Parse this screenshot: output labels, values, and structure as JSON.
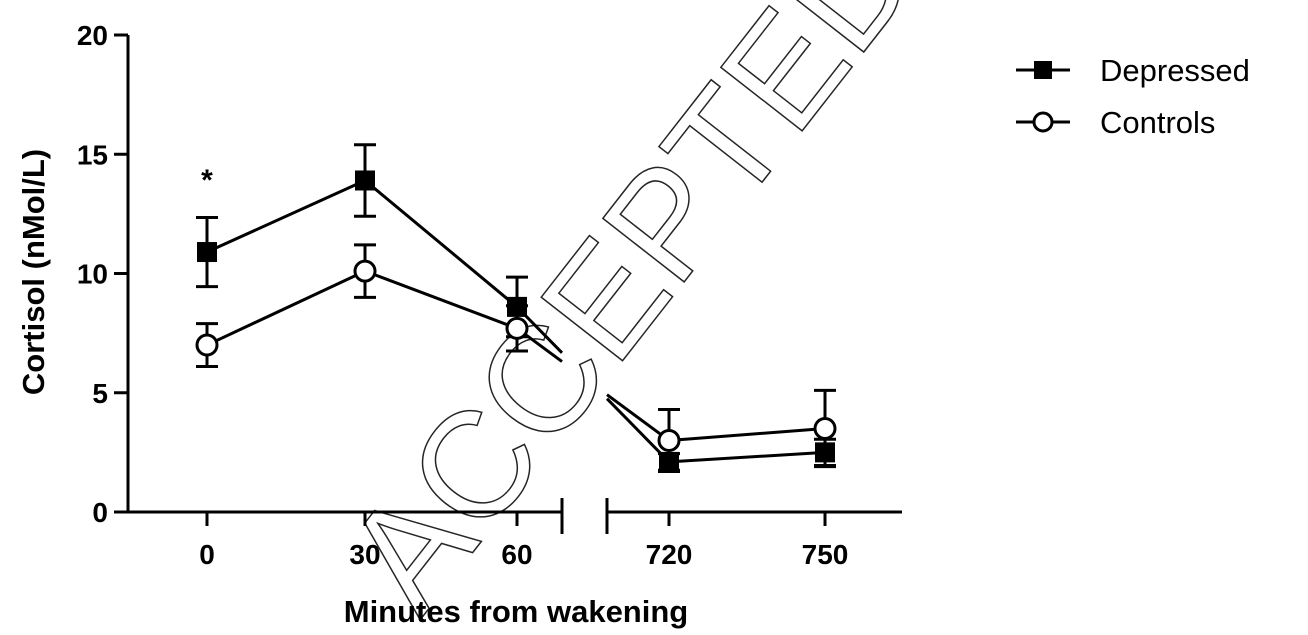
{
  "watermark": "ACCEPTED MANUSCRIPT",
  "chart_data": {
    "type": "line",
    "title": "",
    "xlabel": "Minutes from wakening",
    "ylabel": "Cortisol (nMol/L)",
    "ylim": [
      0,
      20
    ],
    "yticks": [
      0,
      5,
      10,
      15,
      20
    ],
    "x_categories": [
      "0",
      "30",
      "60",
      "720",
      "750"
    ],
    "x_axis_break": "between 60 and 720",
    "grid": false,
    "legend_position": "top-right",
    "annotations": [
      {
        "text": "*",
        "at_x": "0"
      }
    ],
    "series": [
      {
        "name": "Depressed",
        "marker": "filled-square",
        "color": "#000000",
        "points": [
          {
            "x": "0",
            "y": 10.9,
            "err": 1.45
          },
          {
            "x": "30",
            "y": 13.9,
            "err": 1.5
          },
          {
            "x": "60",
            "y": 8.6,
            "err": 1.25
          },
          {
            "x": "720",
            "y": 2.1,
            "err": 0.35
          },
          {
            "x": "750",
            "y": 2.5,
            "err": 0.55
          }
        ]
      },
      {
        "name": "Controls",
        "marker": "open-circle",
        "color": "#000000",
        "points": [
          {
            "x": "0",
            "y": 7.0,
            "err": 0.9
          },
          {
            "x": "30",
            "y": 10.1,
            "err": 1.1
          },
          {
            "x": "60",
            "y": 7.7,
            "err": 0.95
          },
          {
            "x": "720",
            "y": 3.0,
            "err": 1.3
          },
          {
            "x": "750",
            "y": 3.5,
            "err": 1.6
          }
        ]
      }
    ]
  }
}
